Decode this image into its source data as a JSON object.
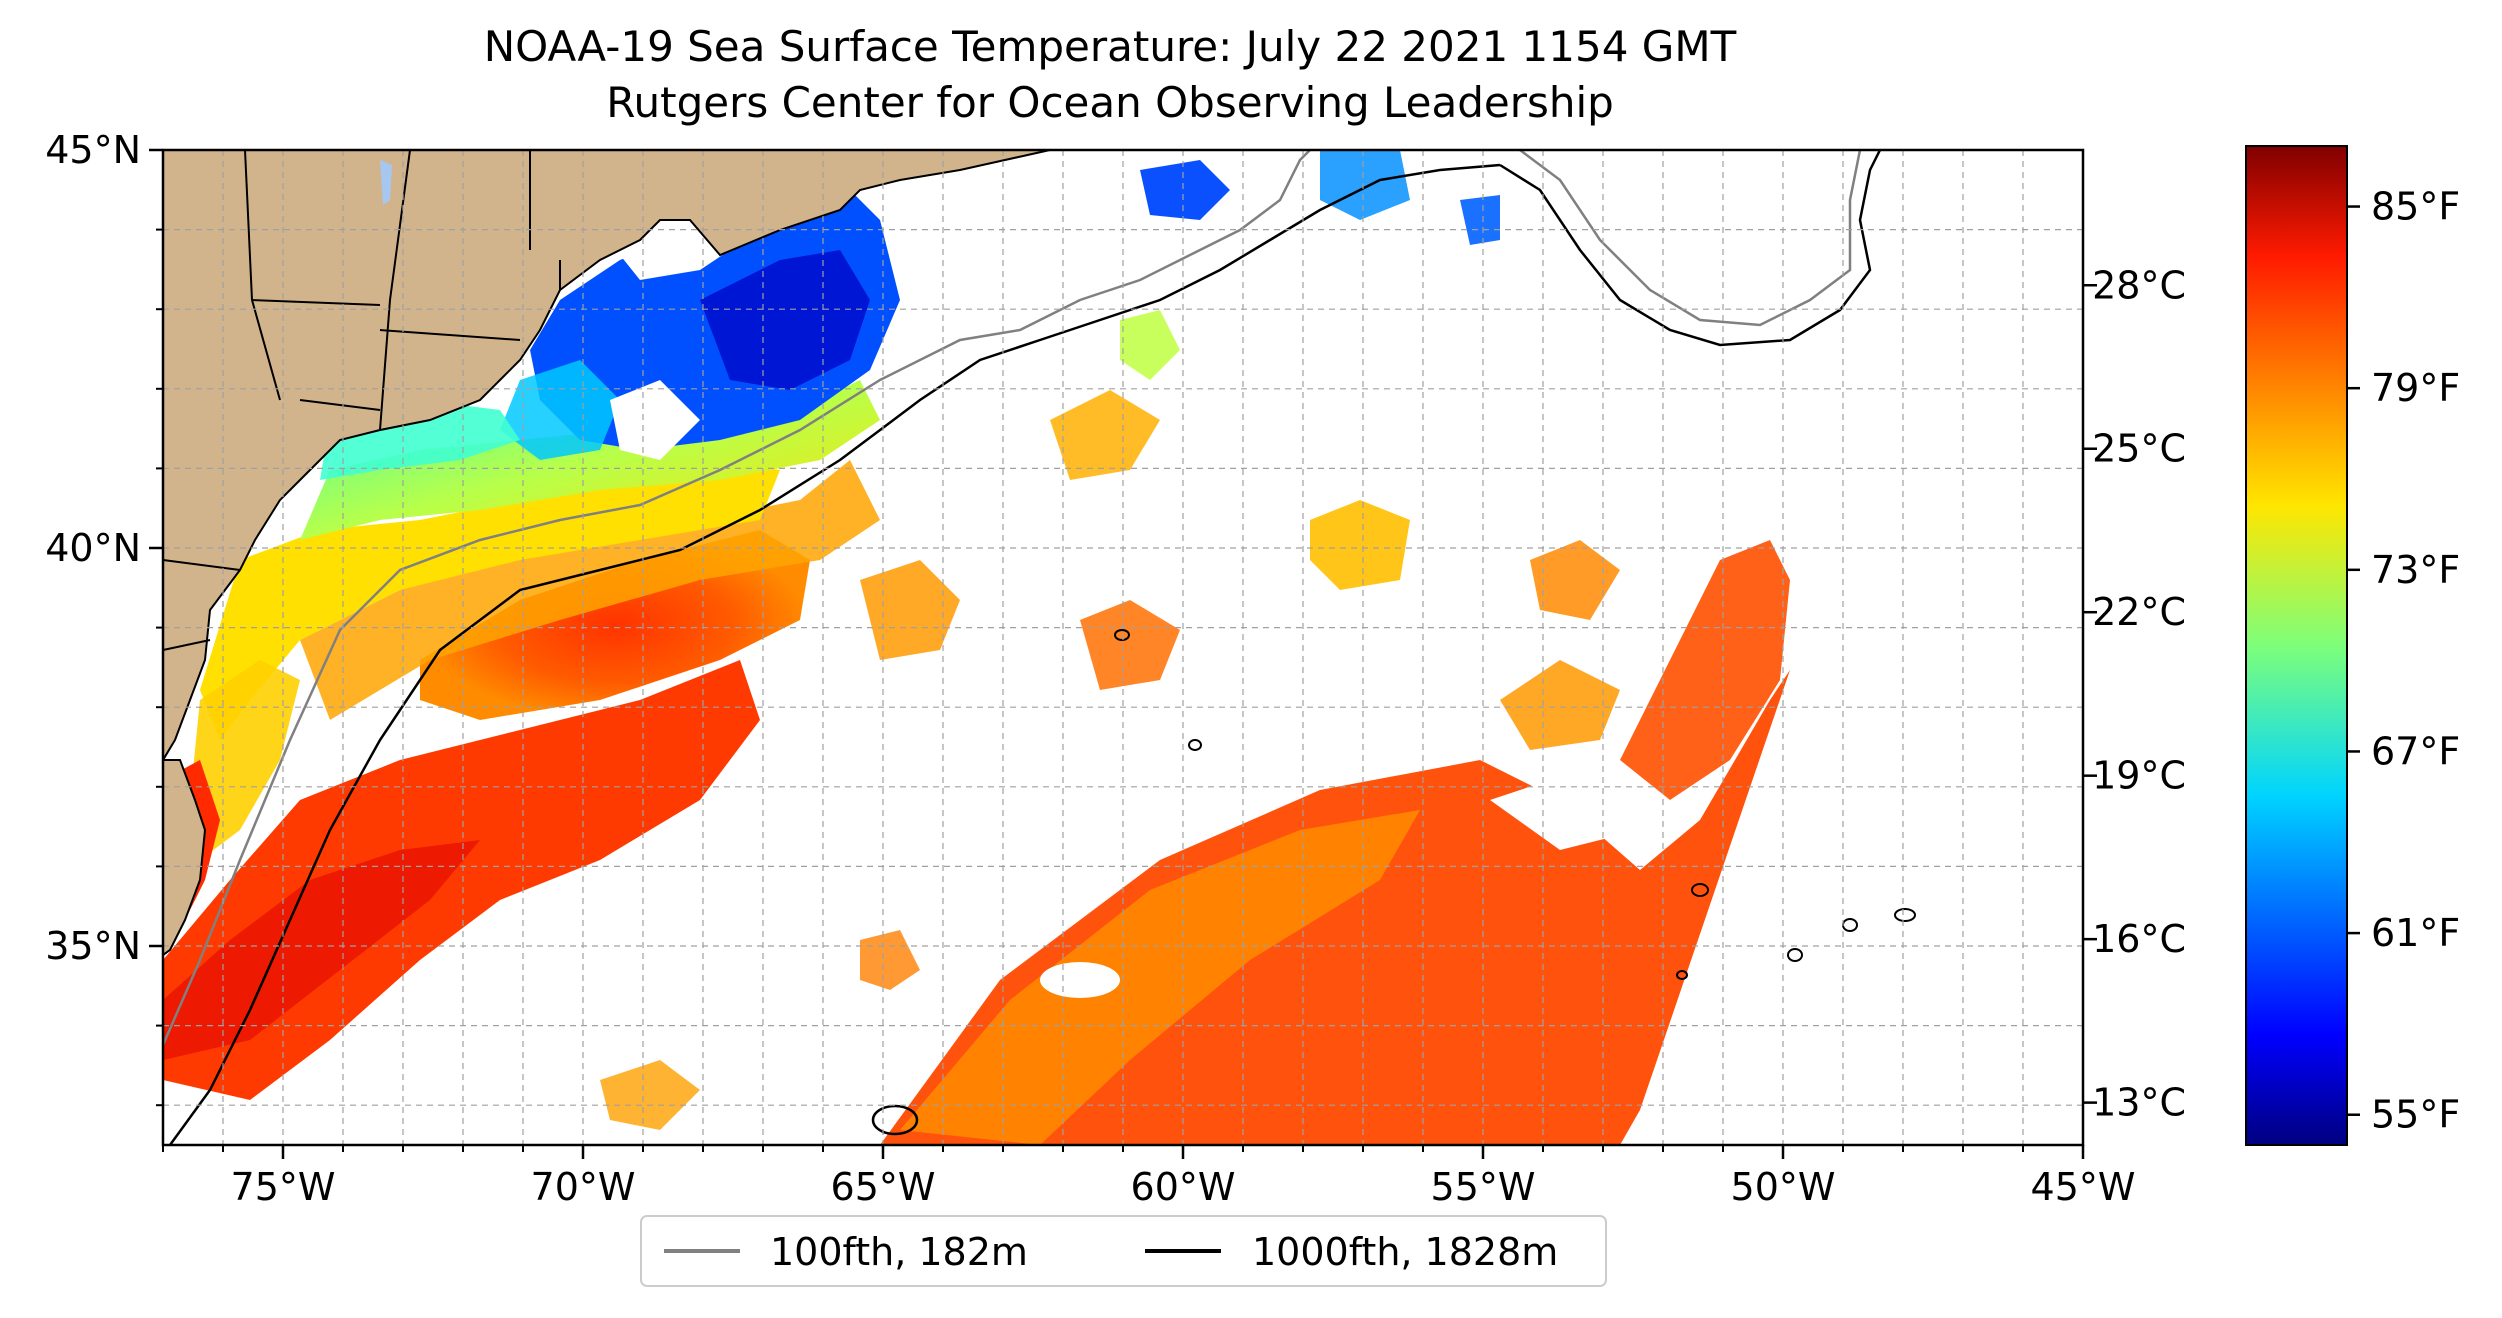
{
  "title": "NOAA-19 Sea Surface Temperature: July 22 2021 1154 GMT",
  "subtitle": "Rutgers Center for Ocean Observing Leadership",
  "map": {
    "lon_range": [
      -77,
      -45
    ],
    "lat_range": [
      32.5,
      45
    ],
    "lon_ticks": [
      {
        "value": -75,
        "label": "75°W"
      },
      {
        "value": -70,
        "label": "70°W"
      },
      {
        "value": -65,
        "label": "65°W"
      },
      {
        "value": -60,
        "label": "60°W"
      },
      {
        "value": -55,
        "label": "55°W"
      },
      {
        "value": -50,
        "label": "50°W"
      },
      {
        "value": -45,
        "label": "45°W"
      }
    ],
    "lat_ticks": [
      {
        "value": 45,
        "label": "45°N"
      },
      {
        "value": 40,
        "label": "40°N"
      },
      {
        "value": 35,
        "label": "35°N"
      }
    ],
    "grid": true,
    "land_color": "#d2b48c",
    "no_data_color": "#ffffff"
  },
  "colorbar": {
    "colormap": "jet",
    "range_f": [
      54,
      87
    ],
    "f_ticks": [
      {
        "value": 55,
        "label": "55°F"
      },
      {
        "value": 61,
        "label": "61°F"
      },
      {
        "value": 67,
        "label": "67°F"
      },
      {
        "value": 73,
        "label": "73°F"
      },
      {
        "value": 79,
        "label": "79°F"
      },
      {
        "value": 85,
        "label": "85°F"
      }
    ],
    "c_ticks": [
      {
        "value": 13,
        "label": "13°C"
      },
      {
        "value": 16,
        "label": "16°C"
      },
      {
        "value": 19,
        "label": "19°C"
      },
      {
        "value": 22,
        "label": "22°C"
      },
      {
        "value": 25,
        "label": "25°C"
      },
      {
        "value": 28,
        "label": "28°C"
      }
    ]
  },
  "legend": {
    "placement": "bottom-center",
    "items": [
      {
        "label": "100fth, 182m",
        "color": "#808080"
      },
      {
        "label": "1000fth, 1828m",
        "color": "#000000"
      }
    ]
  }
}
